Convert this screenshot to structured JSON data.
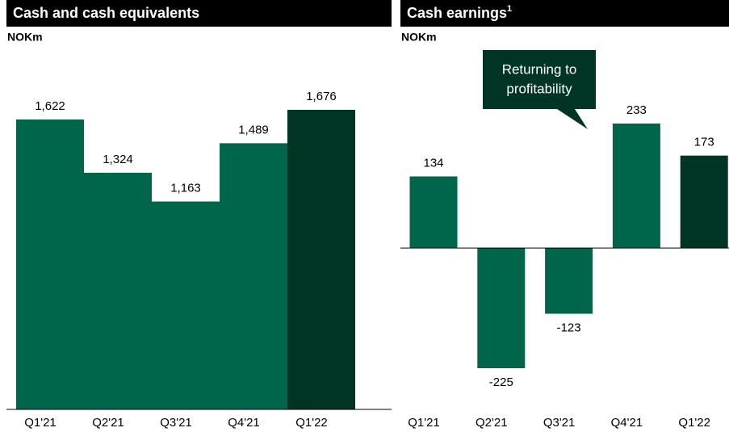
{
  "chart_data": [
    {
      "type": "bar",
      "title": "Cash and cash equivalents",
      "unit_label": "NOKm",
      "categories": [
        "Q1'21",
        "Q2'21",
        "Q3'21",
        "Q4'21",
        "Q1'22"
      ],
      "values": [
        1622,
        1324,
        1163,
        1489,
        1676
      ],
      "value_labels": [
        "1,622",
        "1,324",
        "1,163",
        "1,489",
        "1,676"
      ],
      "colors": [
        "#00664b",
        "#00664b",
        "#00664b",
        "#00664b",
        "#003526"
      ]
    },
    {
      "type": "bar",
      "title": "Cash earnings",
      "title_superscript": "1",
      "unit_label": "NOKm",
      "categories": [
        "Q1'21",
        "Q2'21",
        "Q3'21",
        "Q4'21",
        "Q1'22"
      ],
      "values": [
        134,
        -225,
        -123,
        233,
        173
      ],
      "colors": [
        "#00664b",
        "#00664b",
        "#00664b",
        "#00664b",
        "#003526"
      ],
      "annotation": [
        "Returning to",
        "profitability"
      ]
    }
  ]
}
